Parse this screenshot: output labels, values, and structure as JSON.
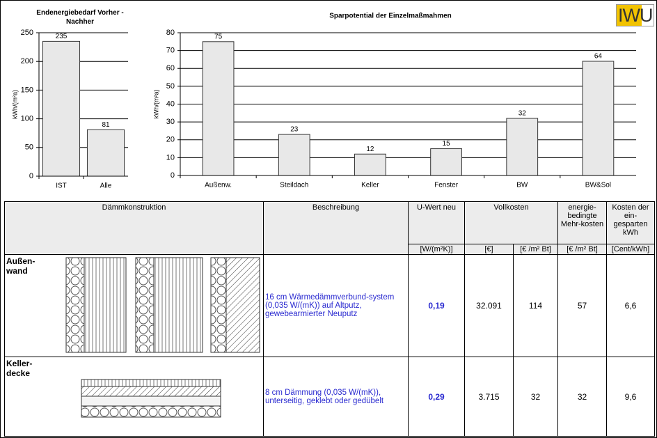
{
  "chart_data": [
    {
      "type": "bar",
      "title": "Endenergiebedarf Vorher - Nachher",
      "y_label": "kWh/(m²a)",
      "categories": [
        "IST",
        "Alle"
      ],
      "values": [
        235,
        81
      ],
      "color": "#e8e8e8",
      "ylim": [
        0,
        250
      ],
      "yticks": [
        0,
        50,
        100,
        150,
        200,
        250
      ],
      "grid": true
    },
    {
      "type": "bar",
      "title": "Sparpotential der Einzelmaßmahmen",
      "y_label": "kWh/(m²a)",
      "categories": [
        "Außenw.",
        "Steildach",
        "Keller",
        "Fenster",
        "BW",
        "BW&Sol"
      ],
      "values": [
        75,
        23,
        12,
        15,
        32,
        64
      ],
      "color": "#e8e8e8",
      "ylim": [
        0,
        80
      ],
      "yticks": [
        0,
        10,
        20,
        30,
        40,
        50,
        60,
        70,
        80
      ],
      "grid": true
    }
  ],
  "logo": "IWU",
  "table": {
    "headers": [
      "Dämmkonstruktion",
      "Beschreibung",
      "U-Wert neu",
      "Vollkosten",
      "energie-bedingte Mehr-kosten",
      "Kosten der ein-gesparten kWh"
    ],
    "units": [
      "[W/(m²K)]",
      "[€]",
      "[€ /m² Bt]",
      "[€ /m² Bt]",
      "[Cent/kWh]"
    ],
    "rows": [
      [
        "Außen-wand",
        "16 cm Wärmedämmverbund-system (0,035 W/(mK)) auf Altputz, gewebearmierter Neuputz",
        "0,19",
        "32.091",
        "114",
        "57",
        "6,6"
      ],
      [
        "Keller-decke",
        "8 cm Dämmung (0,035 W/(mK)), unterseitig, geklebt oder gedübelt",
        "0,29",
        "3.715",
        "32",
        "32",
        "9,6"
      ]
    ]
  }
}
